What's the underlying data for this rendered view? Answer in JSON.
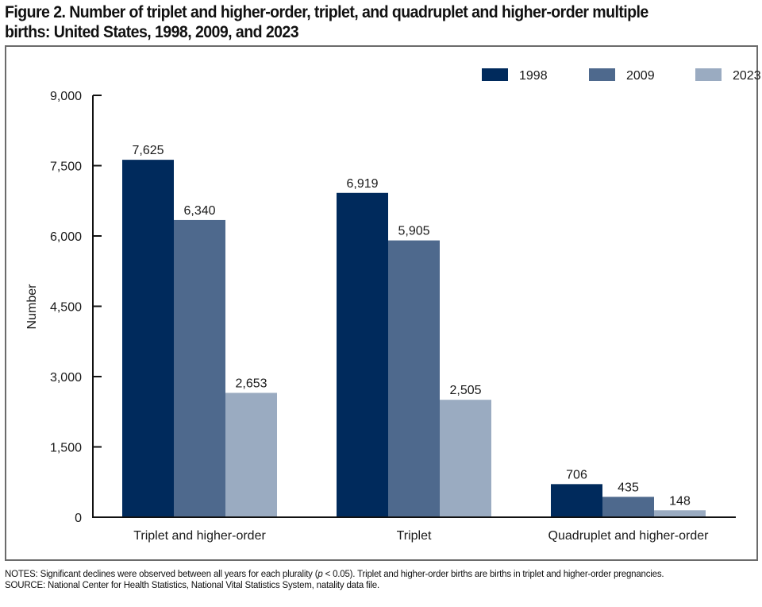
{
  "title": {
    "line1": "Figure 2. Number of triplet and higher-order, triplet, and quadruplet and higher-order multiple",
    "line2": "births: United States, 1998, 2009, and 2023"
  },
  "notes": {
    "prefix": "NOTES: Significant declines were observed between all years for each plurality (",
    "p_symbol": "p",
    "suffix": " < 0.05). Triplet and higher-order births are births in triplet and higher-order pregnancies.",
    "source": "SOURCE: National Center for Health Statistics, National Vital Statistics System, natality data file."
  },
  "chart_data": {
    "type": "bar",
    "title": "Number of triplet and higher-order, triplet, and quadruplet and higher-order multiple births: United States, 1998, 2009, and 2023",
    "xlabel": "",
    "ylabel": "Number",
    "ylim": [
      0,
      9000
    ],
    "yticks": [
      0,
      1500,
      3000,
      4500,
      6000,
      7500,
      9000
    ],
    "ytick_labels": [
      "0",
      "1,500",
      "3,000",
      "4,500",
      "6,000",
      "7,500",
      "9,000"
    ],
    "grid": false,
    "legend_position": "top-right",
    "categories": [
      "Triplet and higher-order",
      "Triplet",
      "Quadruplet and higher-order"
    ],
    "series": [
      {
        "name": "1998",
        "color": "#002a5c",
        "values": [
          7625,
          6919,
          706
        ],
        "labels": [
          "7,625",
          "6,919",
          "706"
        ]
      },
      {
        "name": "2009",
        "color": "#4e698d",
        "values": [
          6340,
          5905,
          435
        ],
        "labels": [
          "6,340",
          "5,905",
          "435"
        ]
      },
      {
        "name": "2023",
        "color": "#9aabc1",
        "values": [
          2653,
          2505,
          148
        ],
        "labels": [
          "2,653",
          "2,505",
          "148"
        ]
      }
    ]
  }
}
